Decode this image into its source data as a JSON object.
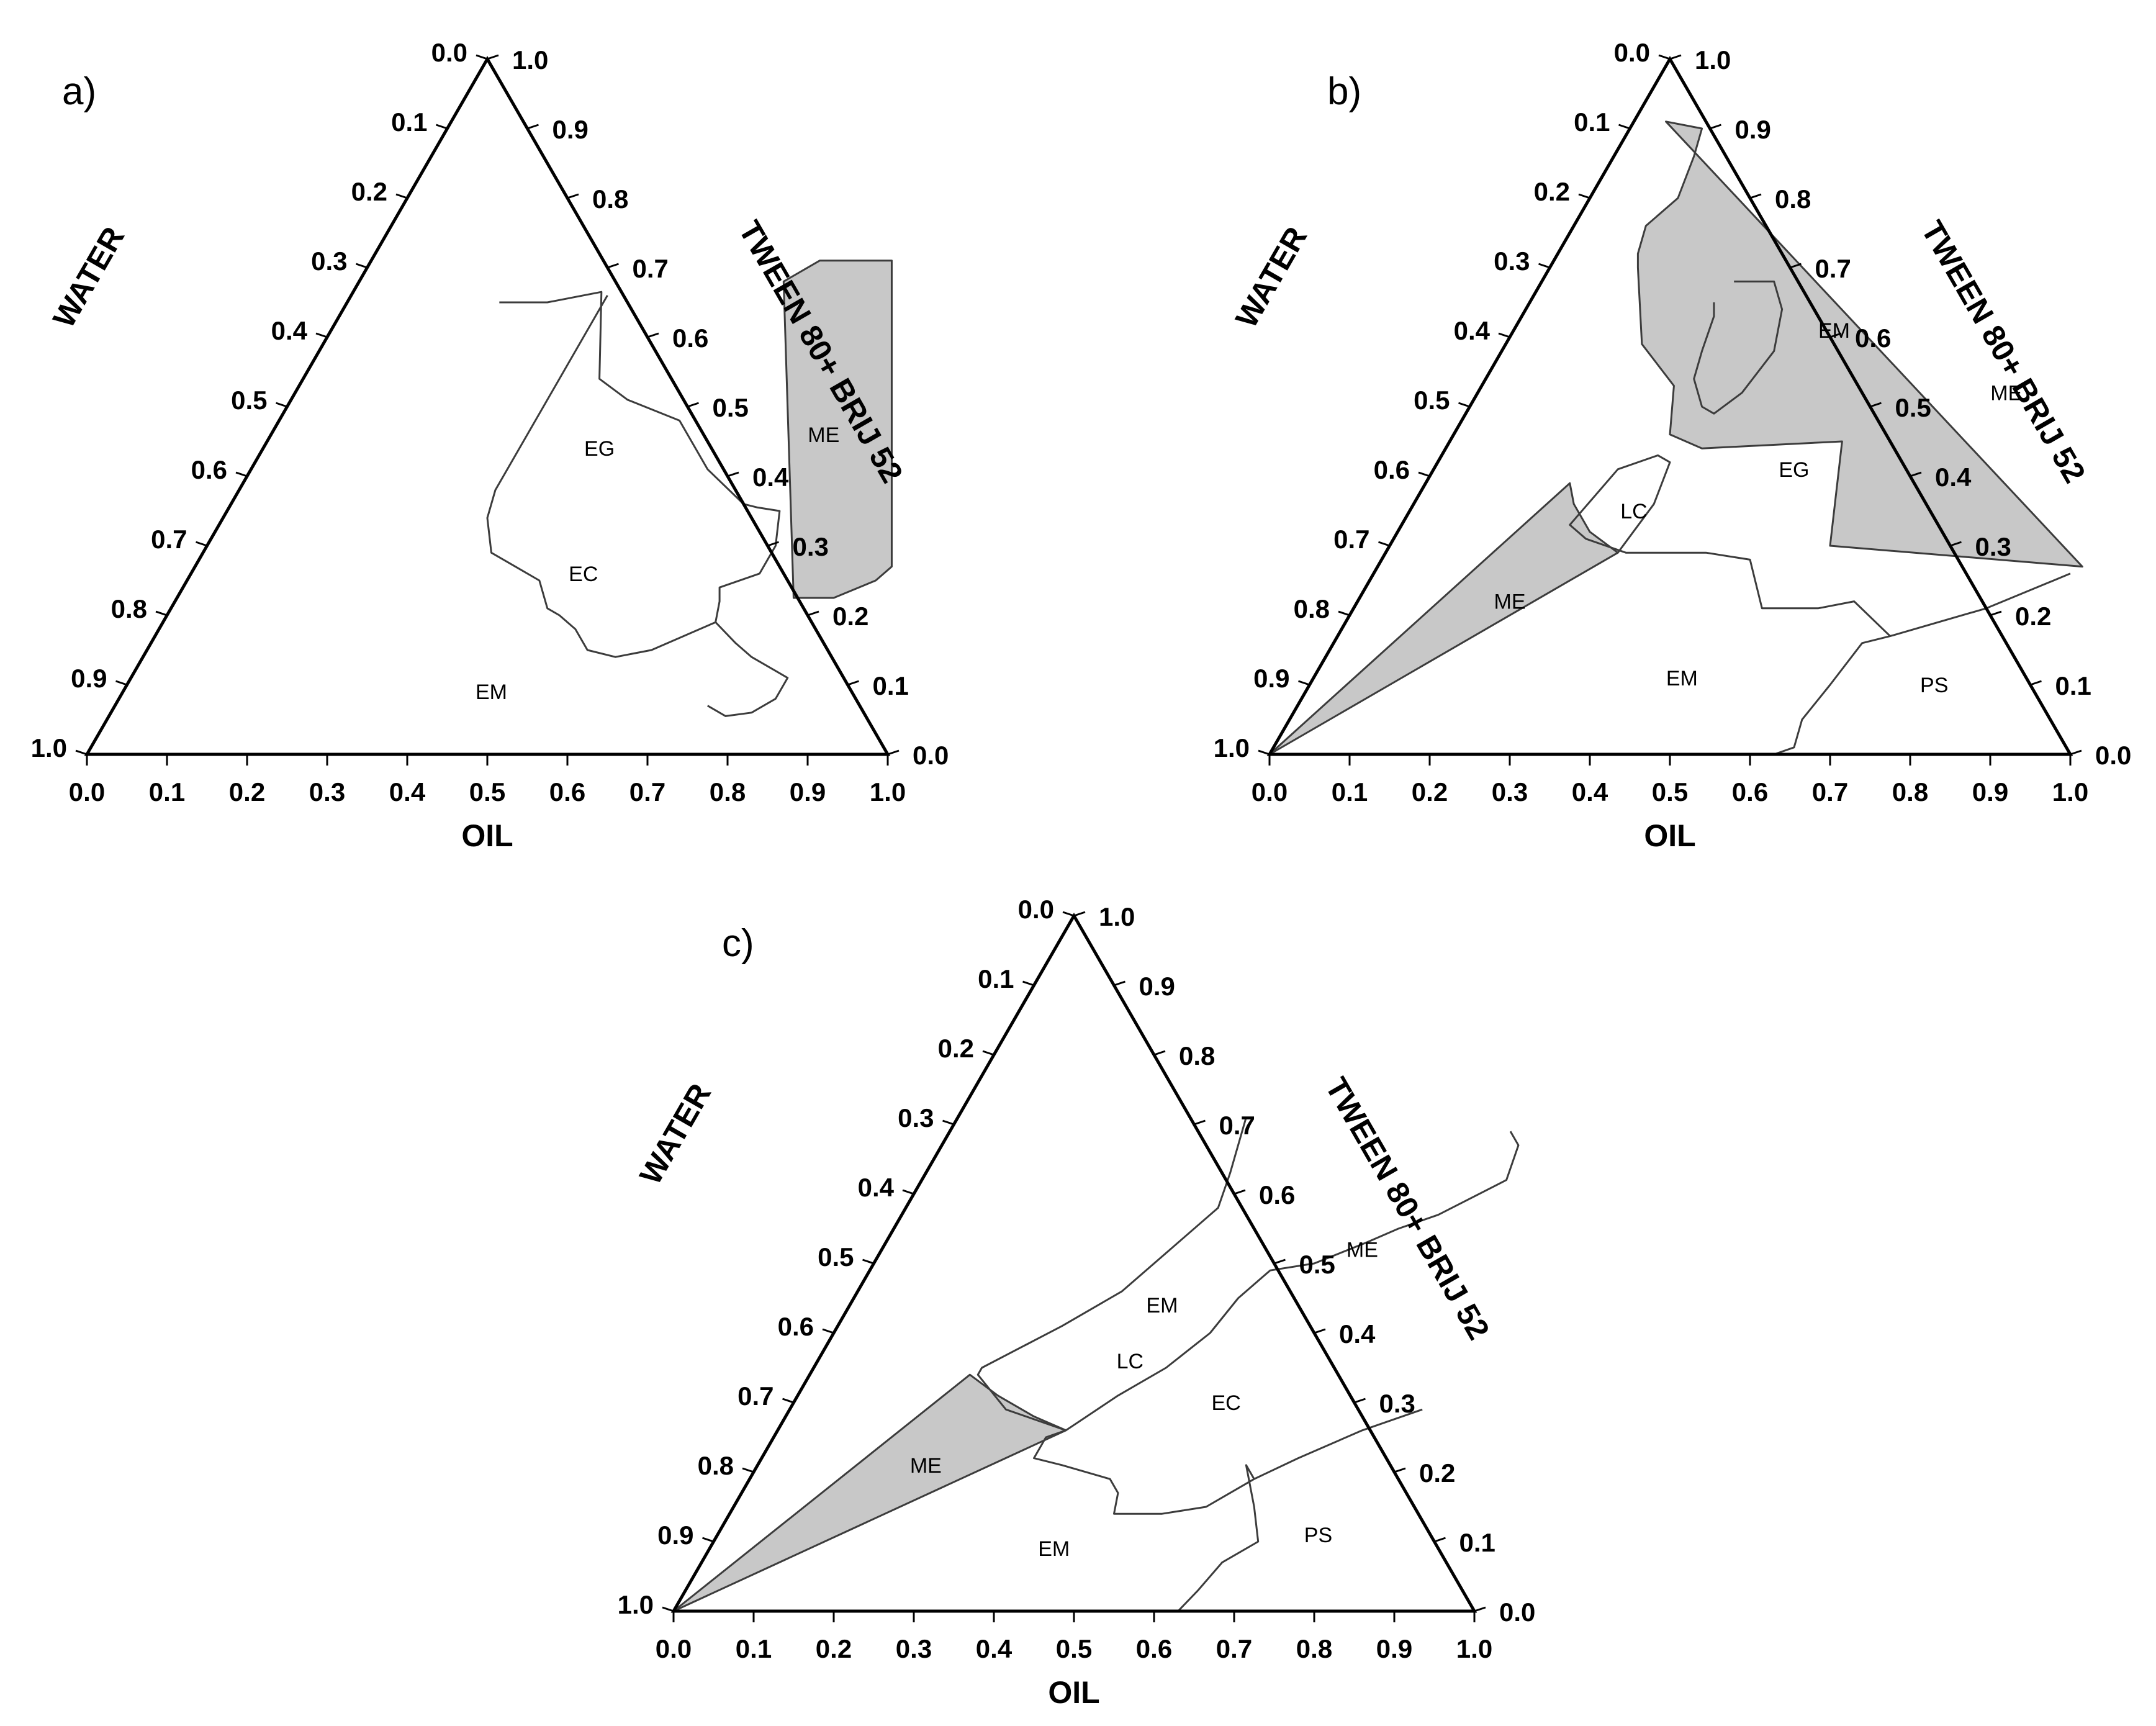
{
  "figure": {
    "type": "ternary-phase-diagram",
    "colors": {
      "phase_fill": "#c8c8c8",
      "line": "#3c3c3c",
      "background": "#ffffff"
    },
    "ticks": [
      "0.0",
      "0.1",
      "0.2",
      "0.3",
      "0.4",
      "0.5",
      "0.6",
      "0.7",
      "0.8",
      "0.9",
      "1.0"
    ],
    "panels": [
      {
        "label": "a)",
        "axes": {
          "left": "WATER",
          "right": "TWEEN 80+ BRIJ 52",
          "bottom": "OIL"
        },
        "regions": [
          {
            "label": "ME",
            "shaded": true,
            "at": {
              "oil": 0.69,
              "surf": 0.46
            }
          },
          {
            "label": "EG",
            "shaded": false,
            "at": {
              "oil": 0.42,
              "surf": 0.44
            }
          },
          {
            "label": "EC",
            "shaded": false,
            "at": {
              "oil": 0.49,
              "surf": 0.26
            }
          },
          {
            "label": "EM",
            "shaded": false,
            "at": {
              "oil": 0.46,
              "surf": 0.09
            }
          }
        ],
        "boundaries": [
          {
            "shaded": true,
            "pts": [
              [
                0.53,
                0.68
              ],
              [
                0.56,
                0.71
              ],
              [
                0.65,
                0.71
              ],
              [
                0.87,
                0.27
              ],
              [
                0.86,
                0.25
              ],
              [
                0.82,
                0.225
              ],
              [
                0.77,
                0.225
              ]
            ]
          },
          {
            "shaded": false,
            "pts": [
              [
                0.19,
                0.65
              ],
              [
                0.25,
                0.65
              ],
              [
                0.31,
                0.665
              ],
              [
                0.37,
                0.54
              ],
              [
                0.42,
                0.51
              ],
              [
                0.5,
                0.48
              ],
              [
                0.57,
                0.41
              ],
              [
                0.64,
                0.36
              ],
              [
                0.66,
                0.355
              ],
              [
                0.69,
                0.35
              ],
              [
                0.71,
                0.3
              ],
              [
                0.71,
                0.26
              ],
              [
                0.67,
                0.24
              ],
              [
                0.68,
                0.22
              ],
              [
                0.69,
                0.19
              ],
              [
                0.73,
                0.16
              ],
              [
                0.76,
                0.14
              ],
              [
                0.8,
                0.12
              ],
              [
                0.82,
                0.11
              ],
              [
                0.82,
                0.08
              ],
              [
                0.8,
                0.06
              ],
              [
                0.77,
                0.055
              ],
              [
                0.74,
                0.07
              ]
            ]
          },
          {
            "shaded": false,
            "pts": [
              [
                0.69,
                0.19
              ],
              [
                0.66,
                0.17
              ],
              [
                0.63,
                0.15
              ],
              [
                0.59,
                0.14
              ],
              [
                0.55,
                0.15
              ],
              [
                0.52,
                0.18
              ],
              [
                0.49,
                0.2
              ],
              [
                0.47,
                0.21
              ],
              [
                0.44,
                0.25
              ],
              [
                0.4,
                0.27
              ],
              [
                0.36,
                0.29
              ],
              [
                0.33,
                0.34
              ],
              [
                0.32,
                0.38
              ],
              [
                0.32,
                0.38
              ],
              [
                0.32,
                0.66
              ]
            ]
          }
        ]
      },
      {
        "label": "b)",
        "axes": {
          "left": "WATER",
          "right": "TWEEN 80+ BRIJ 52",
          "bottom": "OIL"
        },
        "regions": [
          {
            "label": "ME",
            "shaded": true,
            "at": {
              "oil": 0.66,
              "surf": 0.52
            }
          },
          {
            "label": "EM",
            "shaded": false,
            "at": {
              "oil": 0.4,
              "surf": 0.61
            }
          },
          {
            "label": "EG",
            "shaded": false,
            "at": {
              "oil": 0.45,
              "surf": 0.41
            }
          },
          {
            "label": "LC",
            "shaded": false,
            "at": {
              "oil": 0.28,
              "surf": 0.35
            }
          },
          {
            "label": "ME",
            "shaded": true,
            "at": {
              "oil": 0.19,
              "surf": 0.22
            }
          },
          {
            "label": "EM",
            "shaded": false,
            "at": {
              "oil": 0.46,
              "surf": 0.11
            }
          },
          {
            "label": "PS",
            "shaded": false,
            "at": {
              "oil": 0.78,
              "surf": 0.1
            }
          }
        ],
        "boundaries": [
          {
            "shaded": true,
            "pts": [
              [
                0.04,
                0.91
              ],
              [
                0.09,
                0.9
              ],
              [
                0.1,
                0.86
              ],
              [
                0.11,
                0.8
              ],
              [
                0.09,
                0.76
              ],
              [
                0.1,
                0.72
              ],
              [
                0.11,
                0.7
              ],
              [
                0.17,
                0.59
              ],
              [
                0.24,
                0.53
              ],
              [
                0.27,
                0.46
              ],
              [
                0.32,
                0.44
              ],
              [
                0.49,
                0.45
              ],
              [
                0.55,
                0.3
              ],
              [
                0.88,
                0.27
              ]
            ]
          },
          {
            "shaded": true,
            "pts": [
              [
                0.0,
                0.0
              ],
              [
                0.18,
                0.39
              ],
              [
                0.2,
                0.36
              ],
              [
                0.24,
                0.32
              ],
              [
                0.29,
                0.29
              ]
            ]
          },
          {
            "shaded": false,
            "pts": [
              [
                0.23,
                0.65
              ],
              [
                0.24,
                0.63
              ],
              [
                0.25,
                0.58
              ],
              [
                0.26,
                0.54
              ],
              [
                0.29,
                0.5
              ],
              [
                0.31,
                0.49
              ],
              [
                0.33,
                0.52
              ],
              [
                0.34,
                0.58
              ],
              [
                0.32,
                0.64
              ],
              [
                0.29,
                0.68
              ],
              [
                0.27,
                0.68
              ],
              [
                0.24,
                0.68
              ]
            ]
          },
          {
            "shaded": false,
            "pts": [
              [
                0.29,
                0.29
              ],
              [
                0.3,
                0.36
              ],
              [
                0.29,
                0.42
              ],
              [
                0.27,
                0.43
              ],
              [
                0.23,
                0.41
              ],
              [
                0.22,
                0.37
              ],
              [
                0.21,
                0.33
              ],
              [
                0.24,
                0.31
              ],
              [
                0.3,
                0.29
              ],
              [
                0.4,
                0.29
              ],
              [
                0.46,
                0.28
              ],
              [
                0.51,
                0.21
              ],
              [
                0.58,
                0.21
              ],
              [
                0.62,
                0.22
              ],
              [
                0.69,
                0.17
              ],
              [
                0.79,
                0.21
              ],
              [
                0.87,
                0.26
              ]
            ]
          },
          {
            "shaded": false,
            "pts": [
              [
                0.69,
                0.17
              ],
              [
                0.66,
                0.16
              ],
              [
                0.65,
                0.1
              ],
              [
                0.64,
                0.05
              ],
              [
                0.65,
                0.01
              ],
              [
                0.63,
                0.0
              ]
            ]
          }
        ]
      },
      {
        "label": "c)",
        "axes": {
          "left": "WATER",
          "right": "TWEEN 80+ BRIJ 52",
          "bottom": "OIL"
        },
        "regions": [
          {
            "label": "ME",
            "shaded": true,
            "at": {
              "oil": 0.6,
              "surf": 0.52
            }
          },
          {
            "label": "EM",
            "shaded": false,
            "at": {
              "oil": 0.39,
              "surf": 0.44
            }
          },
          {
            "label": "LC",
            "shaded": false,
            "at": {
              "oil": 0.39,
              "surf": 0.36
            }
          },
          {
            "label": "EC",
            "shaded": false,
            "at": {
              "oil": 0.54,
              "surf": 0.3
            }
          },
          {
            "label": "ME",
            "shaded": true,
            "at": {
              "oil": 0.21,
              "surf": 0.21
            }
          },
          {
            "label": "EM",
            "shaded": false,
            "at": {
              "oil": 0.43,
              "surf": 0.09
            }
          },
          {
            "label": "PS",
            "shaded": false,
            "at": {
              "oil": 0.75,
              "surf": 0.11
            }
          }
        ],
        "boundaries": [
          {
            "shaded": true,
            "pts": [
              [
                0.0,
                0.0
              ],
              [
                0.2,
                0.34
              ],
              [
                0.25,
                0.31
              ],
              [
                0.31,
                0.28
              ],
              [
                0.36,
                0.26
              ]
            ]
          },
          {
            "shaded": false,
            "pts": [
              [
                0.36,
                0.26
              ],
              [
                0.34,
                0.25
              ],
              [
                0.34,
                0.22
              ],
              [
                0.38,
                0.21
              ],
              [
                0.45,
                0.19
              ],
              [
                0.47,
                0.17
              ],
              [
                0.48,
                0.14
              ],
              [
                0.54,
                0.14
              ],
              [
                0.59,
                0.15
              ],
              [
                0.63,
                0.19
              ],
              [
                0.67,
                0.22
              ],
              [
                0.73,
                0.26
              ],
              [
                0.79,
                0.29
              ]
            ]
          },
          {
            "shaded": false,
            "pts": [
              [
                0.63,
                0.19
              ],
              [
                0.61,
                0.21
              ],
              [
                0.61,
                0.21
              ],
              [
                0.65,
                0.15
              ],
              [
                0.68,
                0.1
              ],
              [
                0.65,
                0.07
              ],
              [
                0.64,
                0.03
              ],
              [
                0.63,
                0.0
              ]
            ]
          },
          {
            "shaded": false,
            "pts": [
              [
                0.36,
                0.26
              ],
              [
                0.27,
                0.29
              ],
              [
                0.21,
                0.34
              ],
              [
                0.21,
                0.35
              ],
              [
                0.28,
                0.41
              ],
              [
                0.33,
                0.46
              ],
              [
                0.36,
                0.52
              ],
              [
                0.39,
                0.58
              ],
              [
                0.38,
                0.63
              ],
              [
                0.36,
                0.71
              ]
            ]
          },
          {
            "shaded": false,
            "pts": [
              [
                0.36,
                0.26
              ],
              [
                0.4,
                0.31
              ],
              [
                0.44,
                0.35
              ],
              [
                0.47,
                0.4
              ],
              [
                0.48,
                0.45
              ],
              [
                0.5,
                0.49
              ],
              [
                0.55,
                0.5
              ],
              [
                0.6,
                0.53
              ],
              [
                0.63,
                0.55
              ],
              [
                0.67,
                0.57
              ],
              [
                0.73,
                0.62
              ],
              [
                0.72,
                0.67
              ],
              [
                0.7,
                0.69
              ]
            ]
          }
        ]
      }
    ]
  }
}
